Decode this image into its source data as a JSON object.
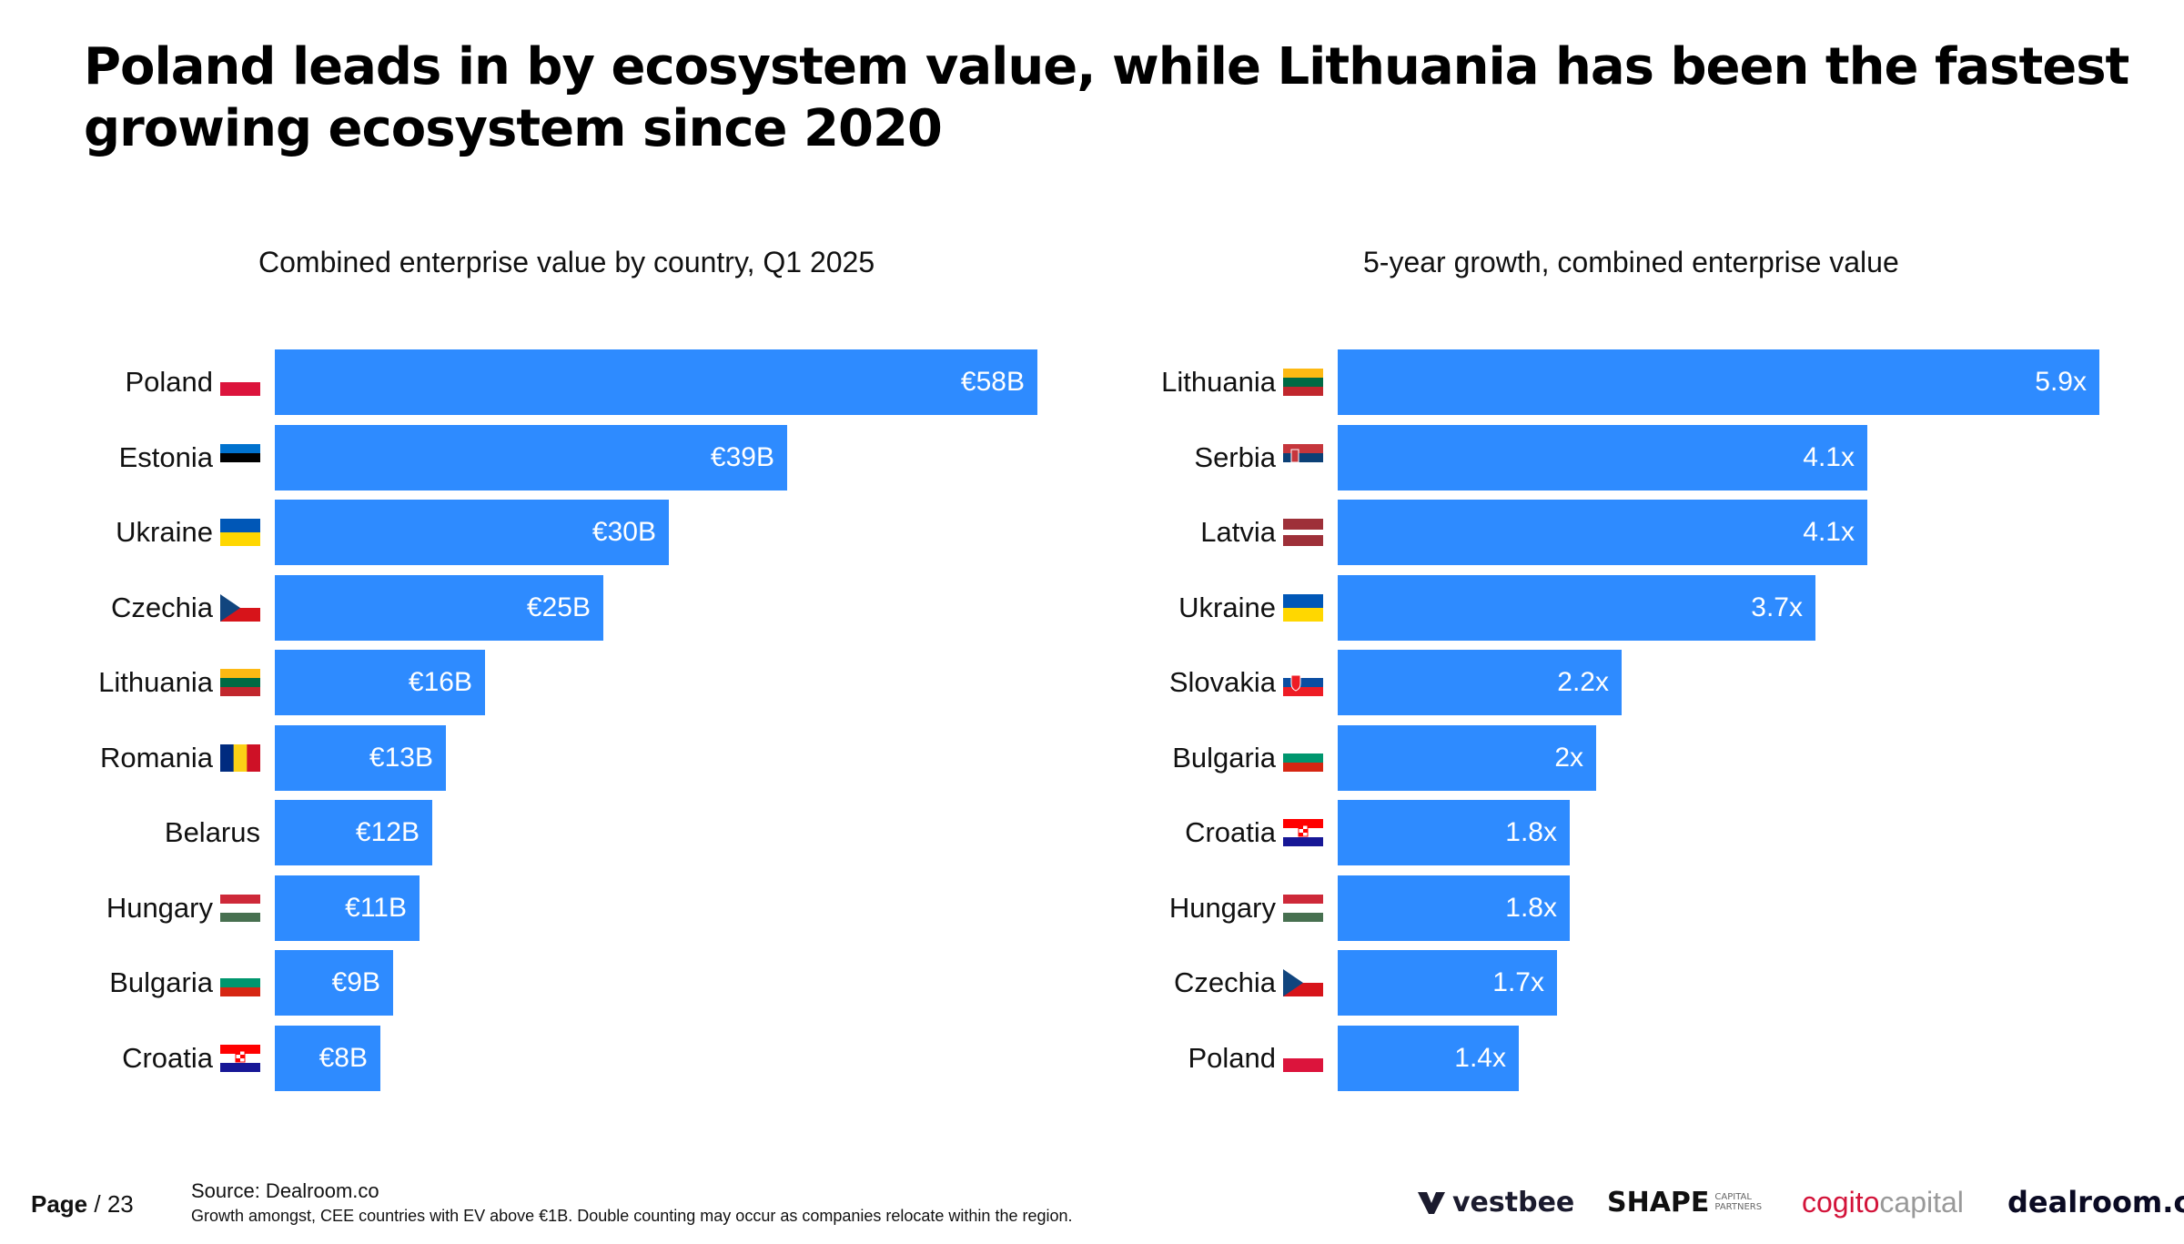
{
  "title": "Poland leads in by ecosystem value, while Lithuania has been the fastest growing ecosystem since 2020",
  "footer": {
    "page_label": "Page",
    "page_number": "/ 23",
    "source": "Source:  Dealroom.co",
    "note": "Growth amongst, CEE countries with EV above €1B. Double counting may occur as companies relocate within the region."
  },
  "logos": {
    "vestbee": "vestbee",
    "shape": "SHAPE",
    "shape_sub": "CAPITAL PARTNERS",
    "cogito_a": "cogito",
    "cogito_b": "capital",
    "dealroom": "dealroom.co"
  },
  "colors": {
    "bar": "#2e8bff",
    "bar_text": "#ffffff"
  },
  "chart_data": [
    {
      "type": "bar",
      "orientation": "horizontal",
      "title": "Combined enterprise value by country, Q1 2025",
      "unit": "€B",
      "categories": [
        "Poland",
        "Estonia",
        "Ukraine",
        "Czechia",
        "Lithuania",
        "Romania",
        "Belarus",
        "Hungary",
        "Bulgaria",
        "Croatia"
      ],
      "values": [
        58,
        39,
        30,
        25,
        16,
        13,
        12,
        11,
        9,
        8
      ],
      "labels": [
        "€58B",
        "€39B",
        "€30B",
        "€25B",
        "€16B",
        "€13B",
        "€12B",
        "€11B",
        "€9B",
        "€8B"
      ],
      "flags": [
        "poland",
        "estonia",
        "ukraine",
        "czechia",
        "lithuania",
        "romania",
        "",
        "hungary",
        "bulgaria",
        "croatia"
      ],
      "xlim": [
        0,
        58
      ]
    },
    {
      "type": "bar",
      "orientation": "horizontal",
      "title": "5-year growth, combined enterprise value",
      "unit": "x",
      "categories": [
        "Lithuania",
        "Serbia",
        "Latvia",
        "Ukraine",
        "Slovakia",
        "Bulgaria",
        "Croatia",
        "Hungary",
        "Czechia",
        "Poland"
      ],
      "values": [
        5.9,
        4.1,
        4.1,
        3.7,
        2.2,
        2.0,
        1.8,
        1.8,
        1.7,
        1.4
      ],
      "labels": [
        "5.9x",
        "4.1x",
        "4.1x",
        "3.7x",
        "2.2x",
        "2x",
        "1.8x",
        "1.8x",
        "1.7x",
        "1.4x"
      ],
      "flags": [
        "lithuania",
        "serbia",
        "latvia",
        "ukraine",
        "slovakia",
        "bulgaria",
        "croatia",
        "hungary",
        "czechia",
        "poland"
      ],
      "xlim": [
        0,
        5.9
      ]
    }
  ]
}
